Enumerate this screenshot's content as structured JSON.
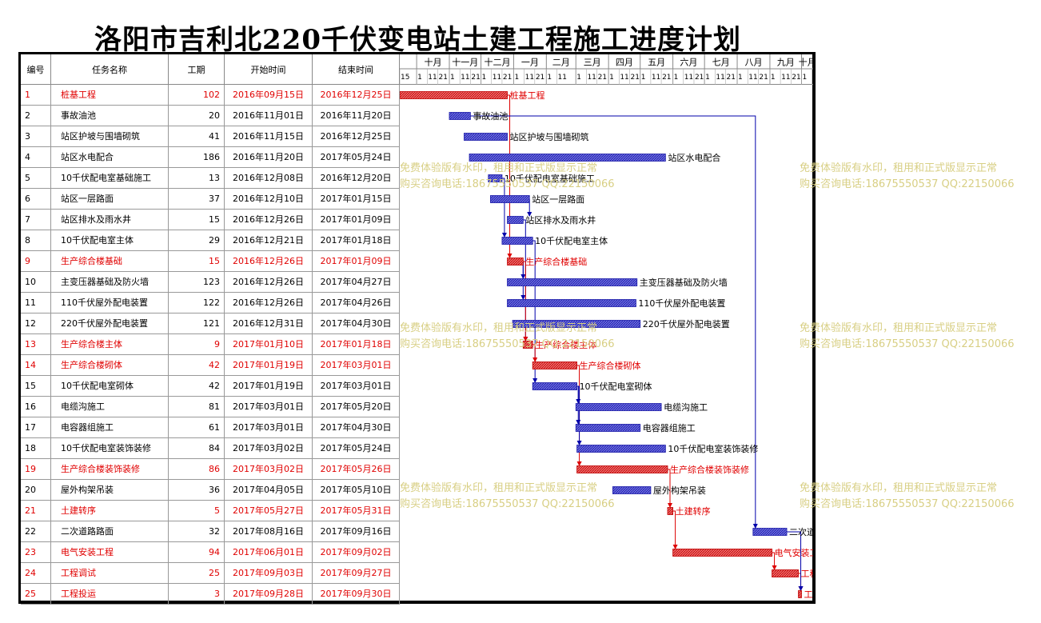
{
  "title": "洛阳市吉利北220千伏变电站土建工程施工进度计划",
  "columns": {
    "id": "编号",
    "name": "任务名称",
    "duration": "工期",
    "start": "开始时间",
    "end": "结束时间"
  },
  "timeline": {
    "months": [
      "十月",
      "十一月",
      "十二月",
      "一月",
      "二月",
      "三月",
      "四月",
      "五月",
      "六月",
      "七月",
      "八月",
      "九月",
      "十月"
    ],
    "day_tick_labels": [
      "15",
      "1",
      "11",
      "21",
      "1",
      "11",
      "21",
      "1",
      "11",
      "21",
      "1",
      "11",
      "21",
      "1",
      "11",
      "1",
      "11",
      "21",
      "1",
      "11",
      "21",
      "1",
      "11",
      "21",
      "1",
      "11",
      "21",
      "1",
      "11",
      "21",
      "1",
      "11",
      "21",
      "1",
      "11",
      "21",
      "1",
      "11",
      "21",
      "1",
      "11"
    ]
  },
  "colors": {
    "normal_bar": "#3333cc",
    "critical_bar": "#e03030",
    "normal_text": "#000000",
    "critical_text": "#e00000",
    "link": "#0000aa",
    "critical_link": "#dd0000",
    "watermark": "#d8cf84"
  },
  "watermark": {
    "line1": "免费体验版有水印，租用和正式版显示正常",
    "line2": "购买咨询电话:18675550537 QQ:22150066"
  },
  "chart_data": {
    "type": "gantt",
    "title": "洛阳市吉利北220千伏变电站土建工程施工进度计划",
    "tasks": [
      {
        "id": "1",
        "name": "桩基工程",
        "duration": "102",
        "start": "2016年09月15日",
        "end": "2016年12月25日",
        "critical": true
      },
      {
        "id": "2",
        "name": "事故油池",
        "duration": "20",
        "start": "2016年11月01日",
        "end": "2016年11月20日",
        "critical": false
      },
      {
        "id": "3",
        "name": "站区护坡与围墙砌筑",
        "duration": "41",
        "start": "2016年11月15日",
        "end": "2016年12月25日",
        "critical": false
      },
      {
        "id": "4",
        "name": "站区水电配合",
        "duration": "186",
        "start": "2016年11月20日",
        "end": "2017年05月24日",
        "critical": false
      },
      {
        "id": "5",
        "name": "10千伏配电室基础施工",
        "duration": "13",
        "start": "2016年12月08日",
        "end": "2016年12月20日",
        "critical": false
      },
      {
        "id": "6",
        "name": "站区一层路面",
        "duration": "37",
        "start": "2016年12月10日",
        "end": "2017年01月15日",
        "critical": false
      },
      {
        "id": "7",
        "name": "站区排水及雨水井",
        "duration": "15",
        "start": "2016年12月26日",
        "end": "2017年01月09日",
        "critical": false
      },
      {
        "id": "8",
        "name": "10千伏配电室主体",
        "duration": "29",
        "start": "2016年12月21日",
        "end": "2017年01月18日",
        "critical": false
      },
      {
        "id": "9",
        "name": "生产综合楼基础",
        "duration": "15",
        "start": "2016年12月26日",
        "end": "2017年01月09日",
        "critical": true
      },
      {
        "id": "10",
        "name": "主变压器基础及防火墙",
        "duration": "123",
        "start": "2016年12月26日",
        "end": "2017年04月27日",
        "critical": false
      },
      {
        "id": "11",
        "name": "110千伏屋外配电装置",
        "duration": "122",
        "start": "2016年12月26日",
        "end": "2017年04月26日",
        "critical": false
      },
      {
        "id": "12",
        "name": "220千伏屋外配电装置",
        "duration": "121",
        "start": "2016年12月31日",
        "end": "2017年04月30日",
        "critical": false
      },
      {
        "id": "13",
        "name": "生产综合楼主体",
        "duration": "9",
        "start": "2017年01月10日",
        "end": "2017年01月18日",
        "critical": true
      },
      {
        "id": "14",
        "name": "生产综合楼砌体",
        "duration": "42",
        "start": "2017年01月19日",
        "end": "2017年03月01日",
        "critical": true
      },
      {
        "id": "15",
        "name": "10千伏配电室砌体",
        "duration": "42",
        "start": "2017年01月19日",
        "end": "2017年03月01日",
        "critical": false
      },
      {
        "id": "16",
        "name": "电缆沟施工",
        "duration": "81",
        "start": "2017年03月01日",
        "end": "2017年05月20日",
        "critical": false
      },
      {
        "id": "17",
        "name": "电容器组施工",
        "duration": "61",
        "start": "2017年03月01日",
        "end": "2017年04月30日",
        "critical": false
      },
      {
        "id": "18",
        "name": "10千伏配电室装饰装修",
        "duration": "84",
        "start": "2017年03月02日",
        "end": "2017年05月24日",
        "critical": false
      },
      {
        "id": "19",
        "name": "生产综合楼装饰装修",
        "duration": "86",
        "start": "2017年03月02日",
        "end": "2017年05月26日",
        "critical": true
      },
      {
        "id": "20",
        "name": "屋外构架吊装",
        "duration": "36",
        "start": "2017年04月05日",
        "end": "2017年05月10日",
        "critical": false
      },
      {
        "id": "21",
        "name": "土建转序",
        "duration": "5",
        "start": "2017年05月27日",
        "end": "2017年05月31日",
        "critical": true
      },
      {
        "id": "22",
        "name": "二次道路路面",
        "duration": "32",
        "start": "2017年08月16日",
        "end": "2017年09月16日",
        "critical": false
      },
      {
        "id": "23",
        "name": "电气安装工程",
        "duration": "94",
        "start": "2017年06月01日",
        "end": "2017年09月02日",
        "critical": true
      },
      {
        "id": "24",
        "name": "工程调试",
        "duration": "25",
        "start": "2017年09月03日",
        "end": "2017年09月27日",
        "critical": true
      },
      {
        "id": "25",
        "name": "工程投运",
        "duration": "3",
        "start": "2017年09月28日",
        "end": "2017年09月30日",
        "critical": true
      }
    ],
    "links": [
      [
        1,
        9
      ],
      [
        2,
        22
      ],
      [
        5,
        8
      ],
      [
        6,
        7
      ],
      [
        7,
        13
      ],
      [
        9,
        10
      ],
      [
        9,
        11
      ],
      [
        9,
        13
      ],
      [
        8,
        15
      ],
      [
        13,
        14
      ],
      [
        14,
        19
      ],
      [
        15,
        16
      ],
      [
        15,
        17
      ],
      [
        15,
        18
      ],
      [
        19,
        21
      ],
      [
        21,
        23
      ],
      [
        23,
        24
      ],
      [
        24,
        25
      ],
      [
        22,
        25
      ]
    ]
  }
}
